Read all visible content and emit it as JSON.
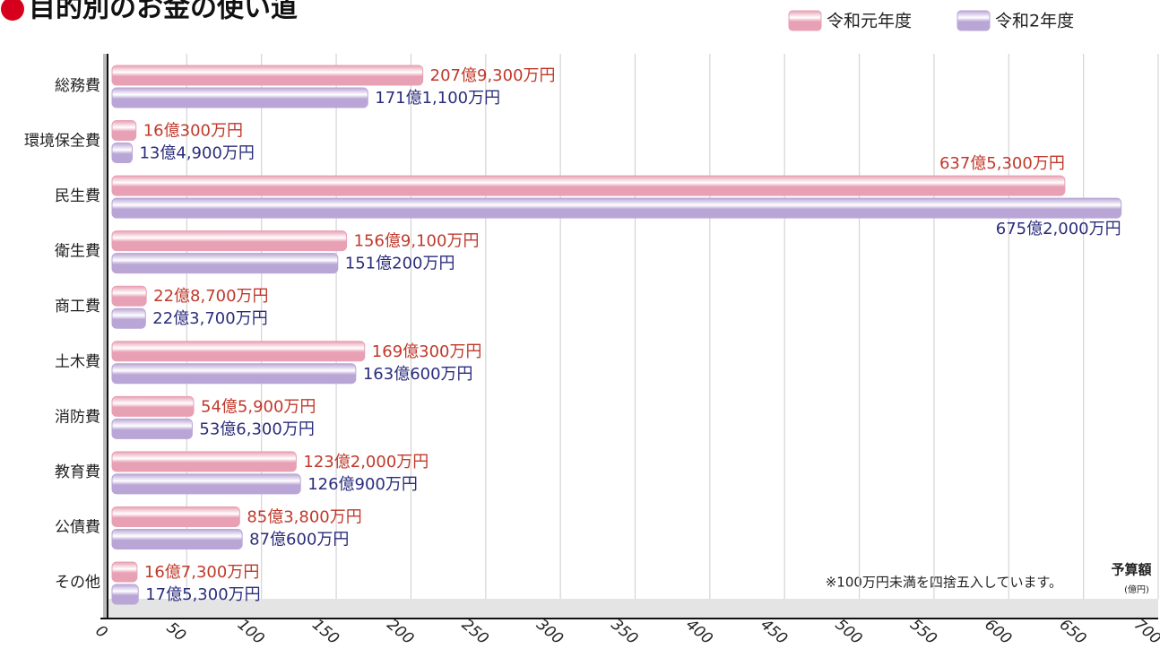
{
  "chart_data": {
    "type": "bar",
    "orientation": "horizontal",
    "title": "目的別のお金の使い道",
    "categories": [
      "総務費",
      "環境保全費",
      "民生費",
      "衛生費",
      "商工費",
      "土木費",
      "消防費",
      "教育費",
      "公債費",
      "その他"
    ],
    "series": [
      {
        "name": "令和元年度",
        "color": "#e8a0b4",
        "label_color": "#c0392b",
        "values": [
          207.93,
          16.03,
          637.53,
          156.91,
          22.87,
          169.03,
          54.59,
          123.2,
          85.38,
          16.73
        ],
        "value_labels": [
          "207億9,300万円",
          "16億300万円",
          "637億5,300万円",
          "156億9,100万円",
          "22億8,700万円",
          "169億300万円",
          "54億5,900万円",
          "123億2,000万円",
          "85億3,800万円",
          "16億7,300万円"
        ]
      },
      {
        "name": "令和2年度",
        "color": "#b9a6d6",
        "label_color": "#2b2d7c",
        "values": [
          171.11,
          13.49,
          675.2,
          151.02,
          22.37,
          163.06,
          53.63,
          126.09,
          87.06,
          17.53
        ],
        "value_labels": [
          "171億1,100万円",
          "13億4,900万円",
          "675億2,000万円",
          "151億200万円",
          "22億3,700万円",
          "163億600万円",
          "53億6,300万円",
          "126億900万円",
          "87億600万円",
          "17億5,300万円"
        ]
      }
    ],
    "x_axis_label": "予算額",
    "x_axis_unit": "(億円)",
    "note": "※100万円未満を四捨五入しています。",
    "xlim": [
      0,
      700
    ],
    "xticks": [
      0,
      50,
      100,
      150,
      200,
      250,
      300,
      350,
      400,
      450,
      500,
      550,
      600,
      650,
      700
    ],
    "grid": true,
    "legend": "top-right"
  }
}
